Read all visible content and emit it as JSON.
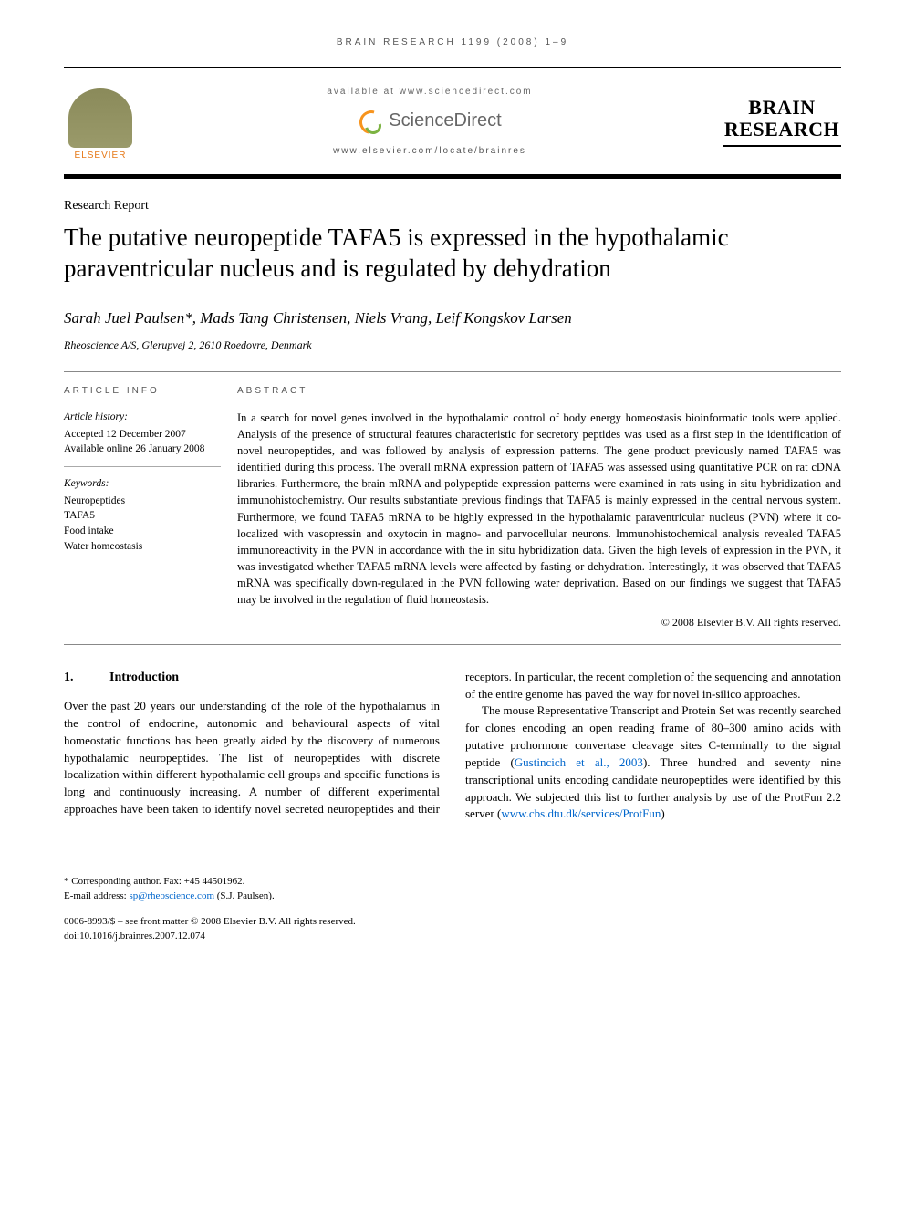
{
  "running_head": "BRAIN RESEARCH 1199 (2008) 1–9",
  "masthead": {
    "publisher": "ELSEVIER",
    "available_text": "available at www.sciencedirect.com",
    "platform": "ScienceDirect",
    "journal_url": "www.elsevier.com/locate/brainres",
    "journal_name_line1": "BRAIN",
    "journal_name_line2": "RESEARCH"
  },
  "article_type": "Research Report",
  "title": "The putative neuropeptide TAFA5 is expressed in the hypothalamic paraventricular nucleus and is regulated by dehydration",
  "authors": "Sarah Juel Paulsen*, Mads Tang Christensen, Niels Vrang, Leif Kongskov Larsen",
  "affiliation": "Rheoscience A/S, Glerupvej 2, 2610 Roedovre, Denmark",
  "info": {
    "heading": "ARTICLE INFO",
    "history_label": "Article history:",
    "history_lines": [
      "Accepted 12 December 2007",
      "Available online 26 January 2008"
    ],
    "keywords_label": "Keywords:",
    "keywords": [
      "Neuropeptides",
      "TAFA5",
      "Food intake",
      "Water homeostasis"
    ]
  },
  "abstract": {
    "heading": "ABSTRACT",
    "text": "In a search for novel genes involved in the hypothalamic control of body energy homeostasis bioinformatic tools were applied. Analysis of the presence of structural features characteristic for secretory peptides was used as a first step in the identification of novel neuropeptides, and was followed by analysis of expression patterns. The gene product previously named TAFA5 was identified during this process. The overall mRNA expression pattern of TAFA5 was assessed using quantitative PCR on rat cDNA libraries. Furthermore, the brain mRNA and polypeptide expression patterns were examined in rats using in situ hybridization and immunohistochemistry. Our results substantiate previous findings that TAFA5 is mainly expressed in the central nervous system. Furthermore, we found TAFA5 mRNA to be highly expressed in the hypothalamic paraventricular nucleus (PVN) where it co-localized with vasopressin and oxytocin in magno- and parvocellular neurons. Immunohistochemical analysis revealed TAFA5 immunoreactivity in the PVN in accordance with the in situ hybridization data. Given the high levels of expression in the PVN, it was investigated whether TAFA5 mRNA levels were affected by fasting or dehydration. Interestingly, it was observed that TAFA5 mRNA was specifically down-regulated in the PVN following water deprivation. Based on our findings we suggest that TAFA5 may be involved in the regulation of fluid homeostasis.",
    "copyright": "© 2008 Elsevier B.V. All rights reserved."
  },
  "body": {
    "section_num": "1.",
    "section_title": "Introduction",
    "para1": "Over the past 20 years our understanding of the role of the hypothalamus in the control of endocrine, autonomic and behavioural aspects of vital homeostatic functions has been greatly aided by the discovery of numerous hypothalamic neuropeptides. The list of neuropeptides with discrete localization within different hypothalamic cell groups and specific functions is long and continuously increasing. A number of different experimental approaches have been taken to identify novel secreted neuropeptides and their receptors. In particu",
    "para1_cont": "lar, the recent completion of the sequencing and annotation of the entire genome has paved the way for novel in-silico approaches.",
    "para2_a": "The mouse Representative Transcript and Protein Set was recently searched for clones encoding an open reading frame of 80–300 amino acids with putative prohormone convertase cleavage sites C-terminally to the signal peptide (",
    "para2_link1": "Gustincich et al., 2003",
    "para2_b": "). Three hundred and seventy nine transcriptional units encoding candidate neuropeptides were identified by this approach. We subjected this list to further analysis by use of the ProtFun 2.2 server (",
    "para2_link2": "www.cbs.dtu.dk/services/ProtFun",
    "para2_c": ")"
  },
  "footnotes": {
    "corr": "* Corresponding author. Fax: +45 44501962.",
    "email_label": "E-mail address: ",
    "email": "sp@rheoscience.com",
    "email_suffix": " (S.J. Paulsen)."
  },
  "front_matter": {
    "line1": "0006-8993/$ – see front matter © 2008 Elsevier B.V. All rights reserved.",
    "line2": "doi:10.1016/j.brainres.2007.12.074"
  },
  "colors": {
    "text": "#000000",
    "link": "#0066cc",
    "orange": "#e67817",
    "rule": "#888888"
  },
  "typography": {
    "title_fontsize_pt": 20,
    "body_fontsize_pt": 10,
    "authors_fontsize_pt": 13,
    "font_family": "Georgia/Times serif"
  }
}
